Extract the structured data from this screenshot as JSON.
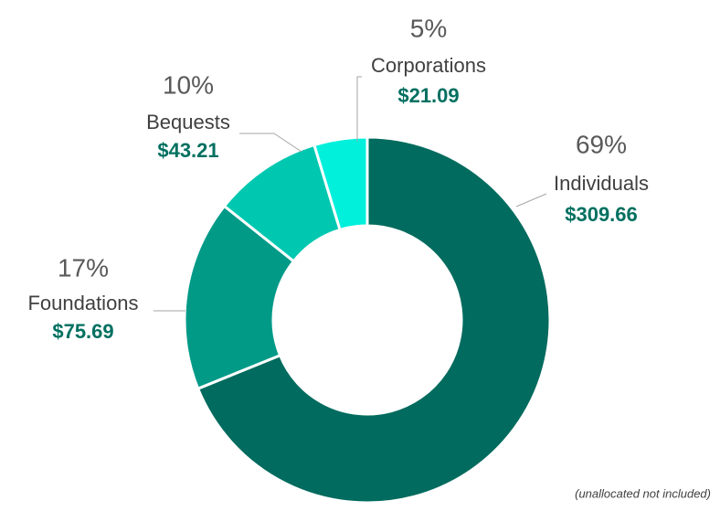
{
  "chart_data": {
    "type": "donut",
    "categories": [
      "Individuals",
      "Foundations",
      "Bequests",
      "Corporations"
    ],
    "values": [
      309.66,
      75.69,
      43.21,
      21.09
    ],
    "value_labels": [
      "$309.66",
      "$75.69",
      "$43.21",
      "$21.09"
    ],
    "percent_labels": [
      "69%",
      "17%",
      "10%",
      "5%"
    ],
    "colors": [
      "#006b5e",
      "#009a87",
      "#00c8b0",
      "#00f0dc"
    ],
    "note": "(unallocated not included)"
  }
}
